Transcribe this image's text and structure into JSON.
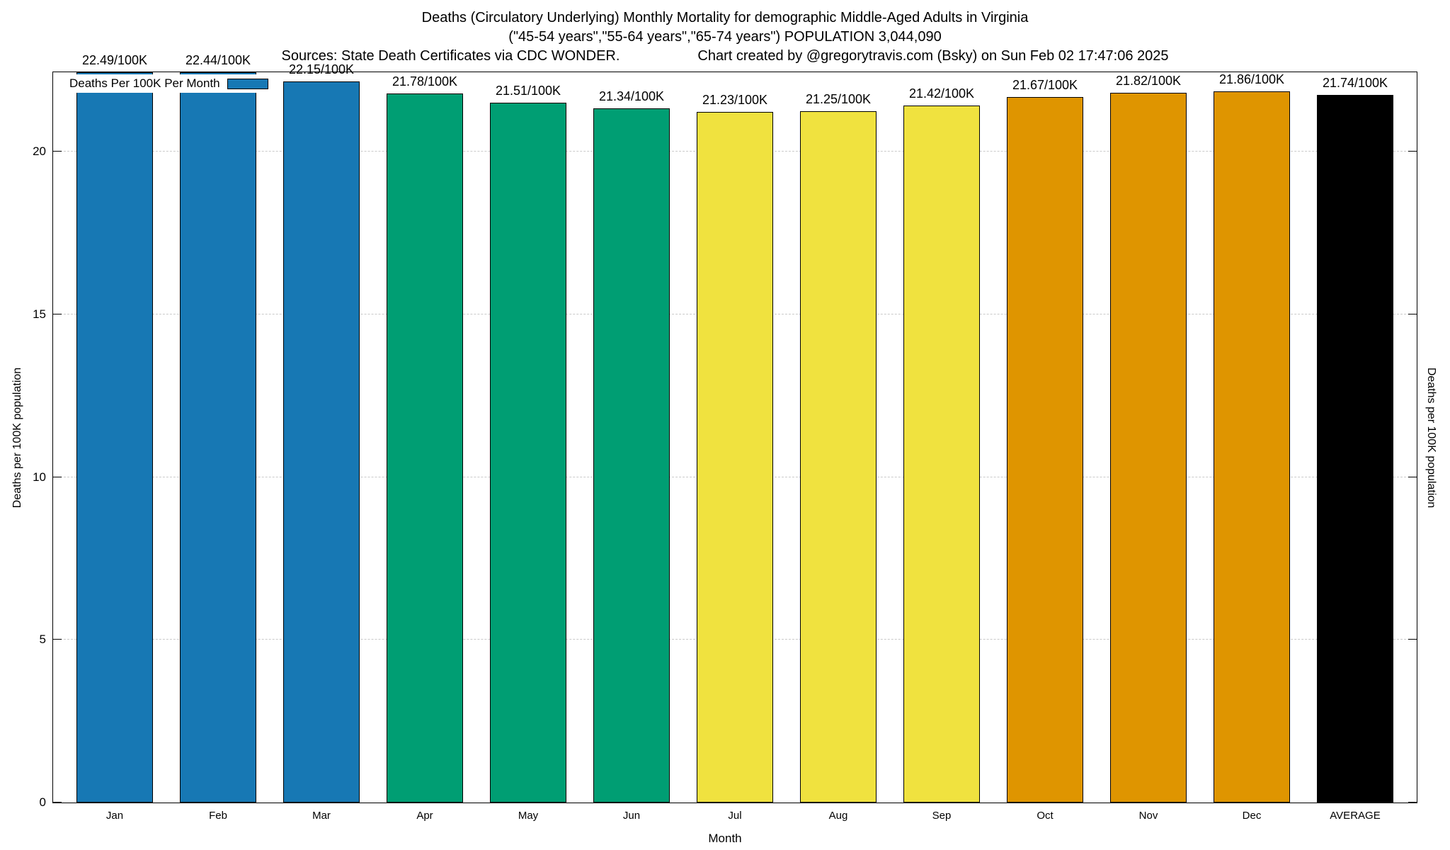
{
  "title": {
    "line1": "Deaths (Circulatory Underlying) Monthly Mortality for demographic Middle-Aged Adults in Virginia",
    "line2": "(\"45-54 years\",\"55-64 years\",\"65-74 years\") POPULATION 3,044,090",
    "line3_left": "Sources: State Death Certificates via CDC WONDER.",
    "line3_right": "Chart created by @gregorytravis.com (Bsky) on Sun Feb 02 17:47:06 2025"
  },
  "legend": {
    "label": "Deaths Per 100K Per Month",
    "swatch_color": "#1778B4"
  },
  "chart_data": {
    "type": "bar",
    "title": "Deaths (Circulatory Underlying) Monthly Mortality for demographic Middle-Aged Adults in Virginia",
    "categories": [
      "Jan",
      "Feb",
      "Mar",
      "Apr",
      "May",
      "Jun",
      "Jul",
      "Aug",
      "Sep",
      "Oct",
      "Nov",
      "Dec",
      "AVERAGE"
    ],
    "values": [
      22.49,
      22.44,
      22.15,
      21.78,
      21.51,
      21.34,
      21.23,
      21.25,
      21.42,
      21.67,
      21.82,
      21.86,
      21.74
    ],
    "bar_labels": [
      "22.49/100K",
      "22.44/100K",
      "22.15/100K",
      "21.78/100K",
      "21.51/100K",
      "21.34/100K",
      "21.23/100K",
      "21.25/100K",
      "21.42/100K",
      "21.67/100K",
      "21.82/100K",
      "21.86/100K",
      "21.74/100K"
    ],
    "bar_colors": [
      "#1778B4",
      "#1778B4",
      "#1778B4",
      "#009E73",
      "#009E73",
      "#009E73",
      "#F0E23F",
      "#F0E23F",
      "#F0E23F",
      "#DF9500",
      "#DF9500",
      "#DF9500",
      "#000000"
    ],
    "xlabel": "Month",
    "ylabel": "Deaths per 100K population",
    "ylabel_right": "Deaths per 100K population",
    "ylim": [
      0,
      22.44
    ],
    "yticks": [
      0,
      5,
      10,
      15,
      20
    ],
    "grid": true,
    "legend_position": "top-left"
  }
}
